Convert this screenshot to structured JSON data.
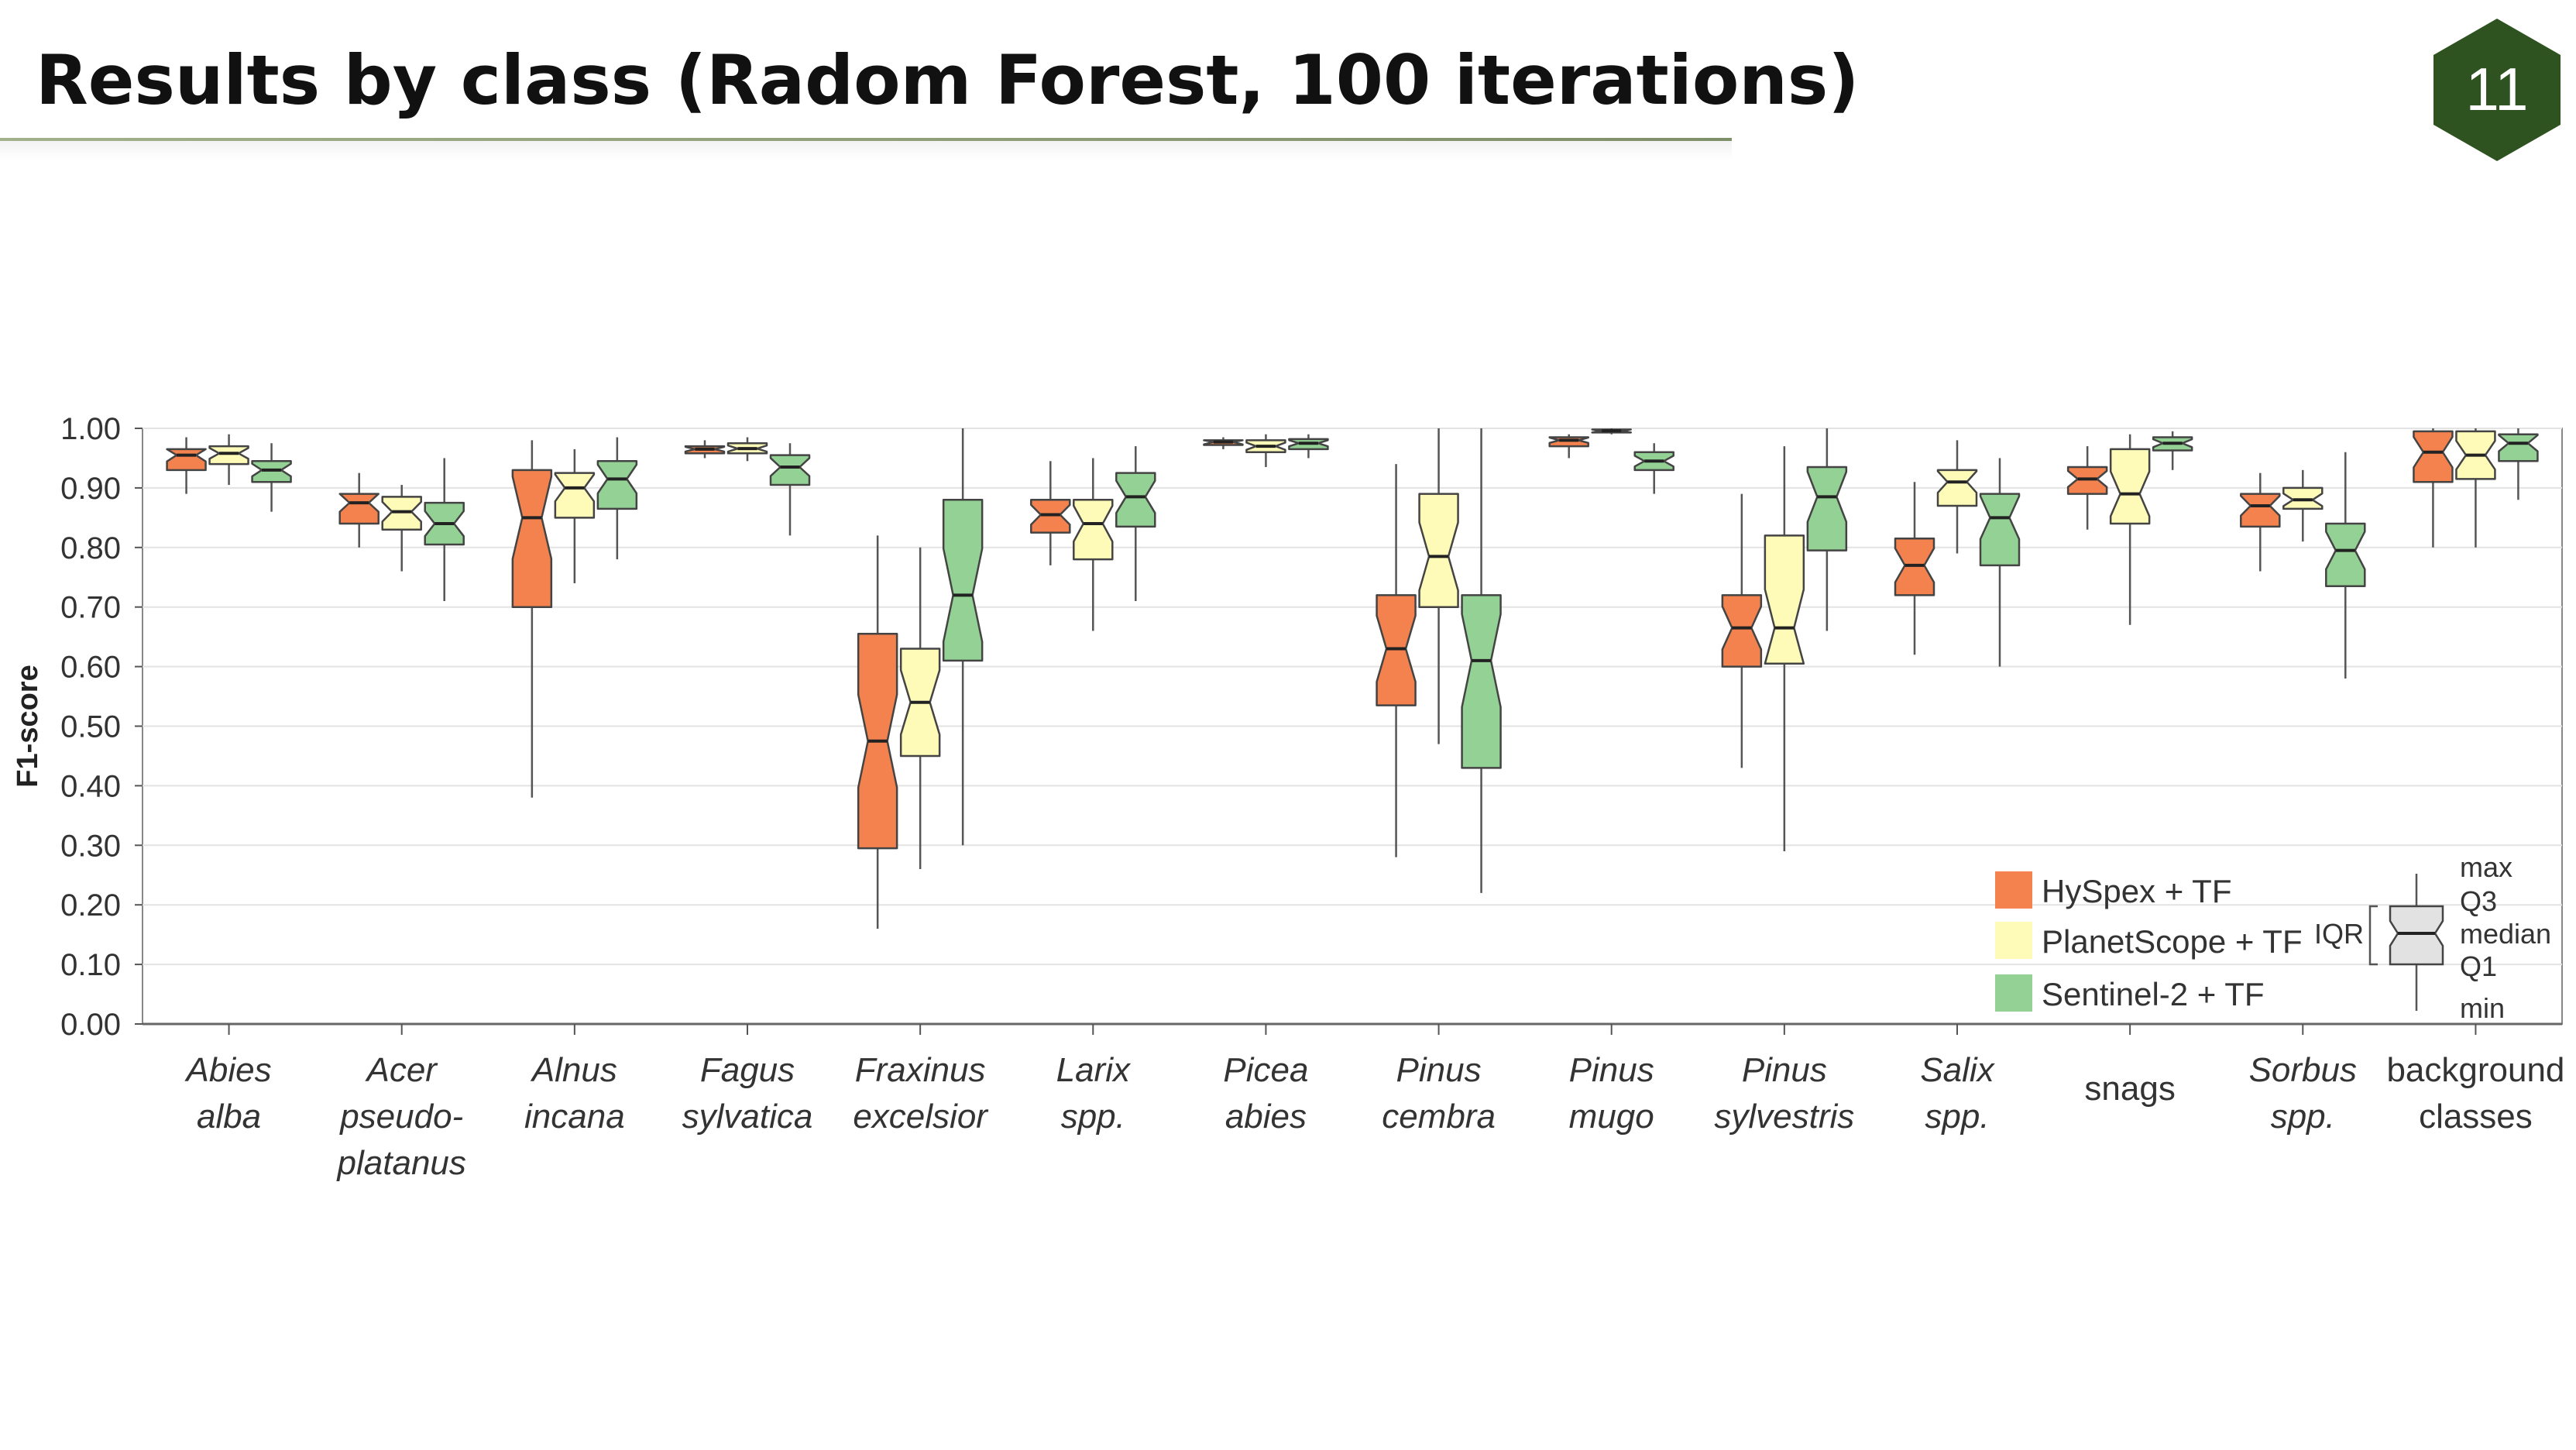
{
  "title": "Results by class (Radom Forest, 100 iterations)",
  "slide_number": "11",
  "colors": {
    "badge": "#2e5320",
    "hyspex": "#f4824e",
    "planetscope": "#fdfbb7",
    "sentinel2": "#93d194"
  },
  "chart_data": {
    "type": "boxplot",
    "notched": true,
    "ylabel": "F1-score",
    "xlabel": "",
    "ylim": [
      0,
      1
    ],
    "yticks": [
      "0.00",
      "0.10",
      "0.20",
      "0.30",
      "0.40",
      "0.50",
      "0.60",
      "0.70",
      "0.80",
      "0.90",
      "1.00"
    ],
    "grid": true,
    "legend_position": "bottom-right",
    "categories": [
      {
        "line1": "Abies",
        "line2": "alba",
        "line3": "",
        "italic": true
      },
      {
        "line1": "Acer",
        "line2": "pseudo-",
        "line3": "platanus",
        "italic": true
      },
      {
        "line1": "Alnus",
        "line2": "incana",
        "line3": "",
        "italic": true
      },
      {
        "line1": "Fagus",
        "line2": "sylvatica",
        "line3": "",
        "italic": true
      },
      {
        "line1": "Fraxinus",
        "line2": "excelsior",
        "line3": "",
        "italic": true
      },
      {
        "line1": "Larix",
        "line2": "spp.",
        "line3": "",
        "italic": true
      },
      {
        "line1": "Picea",
        "line2": "abies",
        "line3": "",
        "italic": true
      },
      {
        "line1": "Pinus",
        "line2": "cembra",
        "line3": "",
        "italic": true
      },
      {
        "line1": "Pinus",
        "line2": "mugo",
        "line3": "",
        "italic": true
      },
      {
        "line1": "Pinus",
        "line2": "sylvestris",
        "line3": "",
        "italic": true
      },
      {
        "line1": "Salix",
        "line2": "spp.",
        "line3": "",
        "italic": true
      },
      {
        "line1": "snags",
        "line2": "",
        "line3": "",
        "italic": false
      },
      {
        "line1": "Sorbus",
        "line2": "spp.",
        "line3": "",
        "italic": true
      },
      {
        "line1": "background",
        "line2": "classes",
        "line3": "",
        "italic": false
      }
    ],
    "series": [
      {
        "name": "HySpex + TF",
        "color": "#f4824e",
        "boxes": [
          {
            "min": 0.89,
            "q1": 0.93,
            "median": 0.955,
            "q3": 0.965,
            "max": 0.985
          },
          {
            "min": 0.8,
            "q1": 0.84,
            "median": 0.875,
            "q3": 0.89,
            "max": 0.925
          },
          {
            "min": 0.38,
            "q1": 0.7,
            "median": 0.85,
            "q3": 0.93,
            "max": 0.98
          },
          {
            "min": 0.95,
            "q1": 0.958,
            "median": 0.965,
            "q3": 0.97,
            "max": 0.98
          },
          {
            "min": 0.16,
            "q1": 0.295,
            "median": 0.475,
            "q3": 0.655,
            "max": 0.82
          },
          {
            "min": 0.77,
            "q1": 0.825,
            "median": 0.855,
            "q3": 0.88,
            "max": 0.945
          },
          {
            "min": 0.965,
            "q1": 0.972,
            "median": 0.977,
            "q3": 0.98,
            "max": 0.985
          },
          {
            "min": 0.28,
            "q1": 0.535,
            "median": 0.63,
            "q3": 0.72,
            "max": 0.94
          },
          {
            "min": 0.95,
            "q1": 0.97,
            "median": 0.98,
            "q3": 0.985,
            "max": 0.99
          },
          {
            "min": 0.43,
            "q1": 0.6,
            "median": 0.665,
            "q3": 0.72,
            "max": 0.89
          },
          {
            "min": 0.62,
            "q1": 0.72,
            "median": 0.77,
            "q3": 0.815,
            "max": 0.91
          },
          {
            "min": 0.83,
            "q1": 0.89,
            "median": 0.915,
            "q3": 0.935,
            "max": 0.97
          },
          {
            "min": 0.76,
            "q1": 0.835,
            "median": 0.87,
            "q3": 0.89,
            "max": 0.925
          },
          {
            "min": 0.8,
            "q1": 0.91,
            "median": 0.96,
            "q3": 0.995,
            "max": 1.0
          }
        ]
      },
      {
        "name": "PlanetScope + TF",
        "color": "#fdfbb7",
        "boxes": [
          {
            "min": 0.905,
            "q1": 0.94,
            "median": 0.958,
            "q3": 0.97,
            "max": 0.99
          },
          {
            "min": 0.76,
            "q1": 0.83,
            "median": 0.86,
            "q3": 0.885,
            "max": 0.905
          },
          {
            "min": 0.74,
            "q1": 0.85,
            "median": 0.9,
            "q3": 0.925,
            "max": 0.965
          },
          {
            "min": 0.945,
            "q1": 0.958,
            "median": 0.966,
            "q3": 0.975,
            "max": 0.985
          },
          {
            "min": 0.26,
            "q1": 0.45,
            "median": 0.54,
            "q3": 0.63,
            "max": 0.8
          },
          {
            "min": 0.66,
            "q1": 0.78,
            "median": 0.84,
            "q3": 0.88,
            "max": 0.95
          },
          {
            "min": 0.935,
            "q1": 0.96,
            "median": 0.97,
            "q3": 0.98,
            "max": 0.99
          },
          {
            "min": 0.47,
            "q1": 0.7,
            "median": 0.785,
            "q3": 0.89,
            "max": 1.0
          },
          {
            "min": 0.99,
            "q1": 0.993,
            "median": 0.996,
            "q3": 0.998,
            "max": 1.0
          },
          {
            "min": 0.29,
            "q1": 0.605,
            "median": 0.665,
            "q3": 0.82,
            "max": 0.97
          },
          {
            "min": 0.79,
            "q1": 0.87,
            "median": 0.91,
            "q3": 0.93,
            "max": 0.98
          },
          {
            "min": 0.67,
            "q1": 0.84,
            "median": 0.89,
            "q3": 0.965,
            "max": 0.99
          },
          {
            "min": 0.81,
            "q1": 0.865,
            "median": 0.88,
            "q3": 0.9,
            "max": 0.93
          },
          {
            "min": 0.8,
            "q1": 0.915,
            "median": 0.955,
            "q3": 0.995,
            "max": 1.0
          }
        ]
      },
      {
        "name": "Sentinel-2 + TF",
        "color": "#93d194",
        "boxes": [
          {
            "min": 0.86,
            "q1": 0.91,
            "median": 0.93,
            "q3": 0.945,
            "max": 0.975
          },
          {
            "min": 0.71,
            "q1": 0.805,
            "median": 0.84,
            "q3": 0.875,
            "max": 0.95
          },
          {
            "min": 0.78,
            "q1": 0.865,
            "median": 0.915,
            "q3": 0.945,
            "max": 0.985
          },
          {
            "min": 0.82,
            "q1": 0.905,
            "median": 0.935,
            "q3": 0.955,
            "max": 0.975
          },
          {
            "min": 0.3,
            "q1": 0.61,
            "median": 0.72,
            "q3": 0.88,
            "max": 1.0
          },
          {
            "min": 0.71,
            "q1": 0.835,
            "median": 0.885,
            "q3": 0.925,
            "max": 0.97
          },
          {
            "min": 0.95,
            "q1": 0.965,
            "median": 0.975,
            "q3": 0.982,
            "max": 0.99
          },
          {
            "min": 0.22,
            "q1": 0.43,
            "median": 0.61,
            "q3": 0.72,
            "max": 1.0
          },
          {
            "min": 0.89,
            "q1": 0.93,
            "median": 0.945,
            "q3": 0.96,
            "max": 0.975
          },
          {
            "min": 0.66,
            "q1": 0.795,
            "median": 0.885,
            "q3": 0.935,
            "max": 1.0
          },
          {
            "min": 0.6,
            "q1": 0.77,
            "median": 0.85,
            "q3": 0.89,
            "max": 0.95
          },
          {
            "min": 0.93,
            "q1": 0.963,
            "median": 0.975,
            "q3": 0.985,
            "max": 0.995
          },
          {
            "min": 0.58,
            "q1": 0.735,
            "median": 0.795,
            "q3": 0.84,
            "max": 0.96
          },
          {
            "min": 0.88,
            "q1": 0.945,
            "median": 0.975,
            "q3": 0.99,
            "max": 1.0
          }
        ]
      }
    ],
    "box_key": {
      "labels": {
        "max": "max",
        "q3": "Q3",
        "median": "median",
        "q1": "Q1",
        "min": "min",
        "iqr": "IQR"
      }
    }
  }
}
